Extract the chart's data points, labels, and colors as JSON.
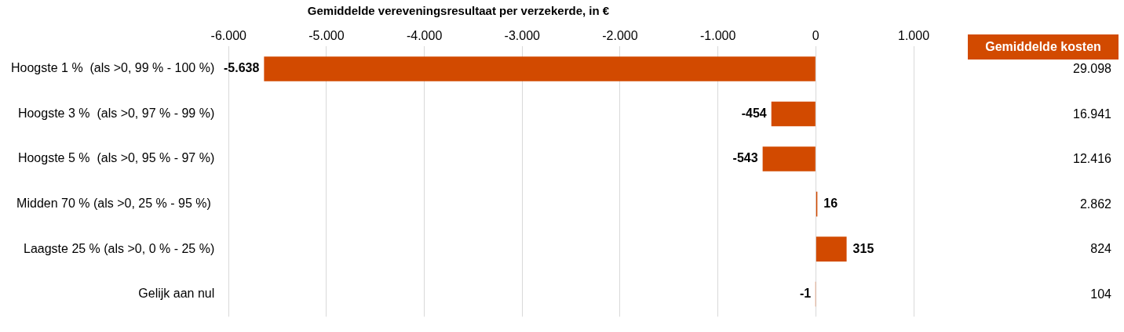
{
  "chart_data": [
    {
      "type": "bar",
      "orientation": "horizontal",
      "title": "Gemiddelde vereveningsresultaat per verzekerde, in €",
      "categories": [
        "Hoogste 1 %  (als >0, 99 % - 100 %)",
        "Hoogste 3 %  (als >0, 97 % - 99 %)",
        "Hoogste 5 %  (als >0, 95 % - 97 %)",
        "Midden 70 % (als >0, 25 % - 95 %) ",
        "Laagste 25 % (als >0, 0 % - 25 %)",
        "Gelijk aan nul"
      ],
      "values": [
        -5638,
        -454,
        -543,
        16,
        315,
        -1
      ],
      "value_labels": [
        "-5.638",
        "-454",
        "-543",
        "16",
        "315",
        "-1"
      ],
      "color": "#d24a00",
      "xlim": [
        -6000,
        1000
      ],
      "xticks": [
        {
          "value": -6000,
          "label": "-6.000"
        },
        {
          "value": -5000,
          "label": "-5.000"
        },
        {
          "value": -4000,
          "label": "-4.000"
        },
        {
          "value": -3000,
          "label": "-3.000"
        },
        {
          "value": -2000,
          "label": "-2.000"
        },
        {
          "value": -1000,
          "label": "-1.000"
        },
        0,
        {
          "value": 1000,
          "label": "1.000"
        }
      ],
      "grid": "x",
      "legend": false
    },
    {
      "type": "other",
      "title": "Gemiddelde kosten",
      "color": "#d24a00",
      "categories": [
        null,
        null,
        null,
        null,
        null,
        null
      ],
      "values": [
        29098,
        16941,
        12416,
        2862,
        824,
        104
      ],
      "value_labels": [
        "29.098",
        "16.941",
        "12.416",
        "2.862",
        "824",
        "104"
      ]
    }
  ]
}
